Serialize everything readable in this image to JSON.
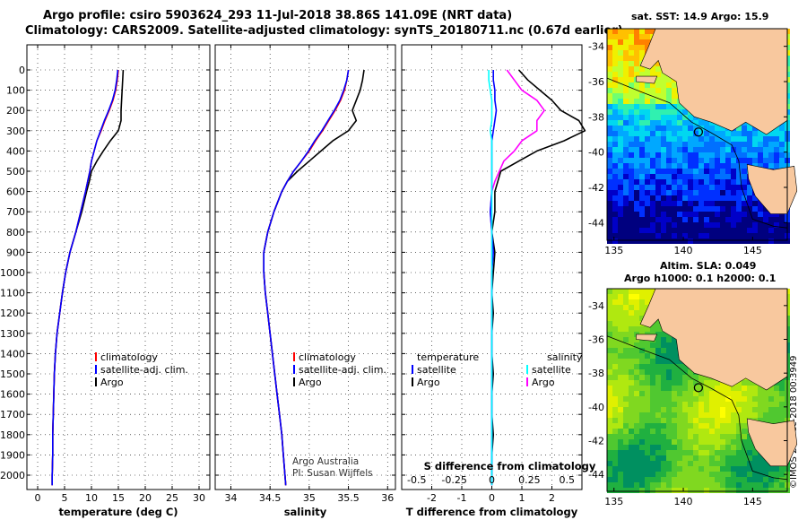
{
  "title_line1": "Argo profile: csiro 5903624_293 11-Jul-2018 38.86S 141.09E (NRT data)",
  "title_line2": "Climatology: CARS2009. Satellite-adjusted climatology: synTS_20180711.nc (0.67d earlier)",
  "map1": {
    "title": "sat. SST: 14.9 Argo: 15.9"
  },
  "map2": {
    "title1": "Altim. SLA: 0.049",
    "title2": "Argo h1000: 0.1 h2000: 0.1"
  },
  "stamp": "©IMOS 20-Dec-2018 00:3949",
  "colors": {
    "climatology": "#ff0000",
    "satellite": "#0000ff",
    "argo": "#000000",
    "t_diff": "#0000ff",
    "s_diff": "#00ffff",
    "s_argo": "#ff00ff",
    "land": "#f8c89e"
  },
  "chart_data": [
    {
      "type": "line",
      "xlabel": "temperature (deg C)",
      "ylabel": "",
      "xlim": [
        -2,
        32
      ],
      "ylim": [
        2050,
        0
      ],
      "xticks": [
        "0",
        "5",
        "10",
        "15",
        "20",
        "25",
        "30"
      ],
      "yticks": [
        "0",
        "100",
        "200",
        "300",
        "400",
        "500",
        "600",
        "700",
        "800",
        "900",
        "1000",
        "1100",
        "1200",
        "1300",
        "1400",
        "1500",
        "1600",
        "1700",
        "1800",
        "1900",
        "2000"
      ],
      "legend": [
        "climatology",
        "satellite-adj. clim.",
        "Argo"
      ],
      "depth": [
        0,
        50,
        100,
        150,
        200,
        250,
        300,
        350,
        400,
        450,
        500,
        550,
        600,
        700,
        800,
        900,
        1000,
        1100,
        1200,
        1300,
        1400,
        1500,
        1600,
        1700,
        1800,
        1900,
        2000,
        2050
      ],
      "series": [
        {
          "name": "climatology",
          "values": [
            15.0,
            14.8,
            14.5,
            14.0,
            13.3,
            12.5,
            11.8,
            11.0,
            10.5,
            10.0,
            9.7,
            9.3,
            8.9,
            8.0,
            7.1,
            6.0,
            5.2,
            4.6,
            4.1,
            3.6,
            3.3,
            3.1,
            3.0,
            2.9,
            2.8,
            2.8,
            2.7,
            2.7
          ]
        },
        {
          "name": "satellite-adj. clim.",
          "values": [
            14.9,
            14.7,
            14.4,
            13.9,
            13.2,
            12.4,
            11.7,
            11.0,
            10.5,
            10.0,
            9.7,
            9.3,
            8.9,
            8.0,
            7.1,
            6.0,
            5.2,
            4.6,
            4.1,
            3.6,
            3.3,
            3.1,
            3.0,
            2.9,
            2.8,
            2.8,
            2.7,
            2.7
          ]
        },
        {
          "name": "Argo",
          "values": [
            15.9,
            15.8,
            15.7,
            15.6,
            15.5,
            15.5,
            15.0,
            13.5,
            12.2,
            11.0,
            10.0,
            9.6,
            9.1,
            8.2,
            7.1,
            6.0,
            5.2,
            4.6,
            4.1,
            3.6,
            3.3,
            3.1,
            3.0,
            2.9,
            2.8,
            2.8,
            2.7,
            2.7
          ]
        }
      ]
    },
    {
      "type": "line",
      "xlabel": "salinity",
      "ylabel": "",
      "xlim": [
        33.8,
        36.1
      ],
      "ylim": [
        2050,
        0
      ],
      "xticks": [
        "34",
        "34.5",
        "35",
        "35.5",
        "36"
      ],
      "legend": [
        "climatology",
        "satellite-adj. clim.",
        "Argo"
      ],
      "annotation": [
        "Argo Australia",
        "PI: Susan Wijffels"
      ],
      "depth": [
        0,
        50,
        100,
        150,
        200,
        250,
        300,
        350,
        400,
        450,
        500,
        550,
        600,
        700,
        800,
        900,
        1000,
        1100,
        1200,
        1300,
        1400,
        1500,
        1600,
        1700,
        1800,
        1900,
        2000,
        2050
      ],
      "series": [
        {
          "name": "climatology",
          "values": [
            35.5,
            35.48,
            35.45,
            35.4,
            35.33,
            35.25,
            35.17,
            35.08,
            35.0,
            34.9,
            34.8,
            34.72,
            34.65,
            34.55,
            34.47,
            34.42,
            34.42,
            34.44,
            34.47,
            34.5,
            34.53,
            34.56,
            34.59,
            34.62,
            34.65,
            34.67,
            34.69,
            34.7
          ]
        },
        {
          "name": "satellite-adj. clim.",
          "values": [
            35.5,
            35.48,
            35.44,
            35.39,
            35.32,
            35.24,
            35.16,
            35.07,
            34.99,
            34.9,
            34.8,
            34.72,
            34.65,
            34.55,
            34.47,
            34.42,
            34.42,
            34.44,
            34.47,
            34.5,
            34.53,
            34.56,
            34.59,
            34.62,
            34.65,
            34.67,
            34.69,
            34.7
          ]
        },
        {
          "name": "Argo",
          "values": [
            35.7,
            35.68,
            35.65,
            35.6,
            35.55,
            35.6,
            35.5,
            35.3,
            35.15,
            35.0,
            34.85,
            34.72,
            34.65,
            34.55,
            34.47,
            34.42,
            34.42,
            34.44,
            34.47,
            34.5,
            34.53,
            34.56,
            34.59,
            34.62,
            34.65,
            34.67,
            34.69,
            34.7
          ]
        }
      ]
    },
    {
      "type": "line",
      "xlabel": "T difference from climatology",
      "xlabel_top": "S difference from climatology",
      "ylabel": "",
      "xlim": [
        -3,
        3
      ],
      "ylim": [
        2050,
        0
      ],
      "xticks": [
        "-2",
        "-1",
        "0",
        "1",
        "2"
      ],
      "xticks_top": [
        "-0.5",
        "-0.25",
        "0",
        "0.25",
        "0.5"
      ],
      "legend_headers": [
        "temperature",
        "salinity"
      ],
      "legend": [
        "satellite",
        "Argo",
        "satellite",
        "Argo"
      ],
      "depth": [
        0,
        50,
        100,
        150,
        200,
        250,
        300,
        350,
        400,
        450,
        500,
        550,
        600,
        700,
        800,
        900,
        1000,
        1100,
        1200,
        1300,
        1400,
        1500,
        1600,
        1700,
        1800,
        1900,
        2000,
        2050
      ],
      "series": [
        {
          "name": "satellite",
          "values": [
            0.05,
            0.05,
            0.1,
            0.1,
            0.15,
            0.1,
            0.05,
            0.0,
            0.0,
            0.0,
            0.0,
            0.0,
            0.0,
            -0.05,
            0.0,
            0.05,
            0.0,
            0.0,
            0.0,
            0.0,
            0.0,
            0.0,
            0.0,
            0.0,
            0.0,
            0.0,
            0.0,
            0.0
          ]
        },
        {
          "name": "Argo",
          "values": [
            0.9,
            1.2,
            1.6,
            2.0,
            2.3,
            2.9,
            3.1,
            2.4,
            1.5,
            0.9,
            0.3,
            0.2,
            0.1,
            0.1,
            0.0,
            0.1,
            0.05,
            0.0,
            0.05,
            0.0,
            0.0,
            0.05,
            0.0,
            0.0,
            0.05,
            0.0,
            0.0,
            0.0
          ]
        },
        {
          "name": "satellite",
          "values": [
            -0.02,
            -0.02,
            -0.01,
            0.0,
            0.0,
            0.0,
            -0.01,
            0.0,
            0.0,
            0.0,
            0.0,
            0.0,
            0.0,
            0.0,
            0.0,
            0.0,
            0.0,
            0.0,
            0.0,
            0.0,
            0.0,
            0.0,
            0.0,
            0.0,
            0.0,
            0.0,
            0.0,
            0.0
          ]
        },
        {
          "name": "Argo",
          "values": [
            0.1,
            0.15,
            0.2,
            0.3,
            0.35,
            0.3,
            0.3,
            0.2,
            0.15,
            0.08,
            0.05,
            0.02,
            0.0,
            -0.01,
            0.0,
            0.0,
            0.0,
            0.0,
            0.0,
            0.0,
            0.0,
            0.0,
            0.0,
            0.0,
            0.0,
            0.0,
            0.0,
            0.0
          ]
        }
      ]
    },
    {
      "type": "heatmap",
      "title": "sat. SST: 14.9 Argo: 15.9",
      "xlim": [
        134.5,
        147.5
      ],
      "ylim": [
        -45,
        -33
      ],
      "xticks": [
        "135",
        "140",
        "145"
      ],
      "yticks": [
        "-34",
        "-36",
        "-38",
        "-40",
        "-42",
        "-44"
      ],
      "argo_position": [
        141.09,
        -38.86
      ]
    },
    {
      "type": "heatmap",
      "title": "Altim. SLA: 0.049",
      "subtitle": "Argo h1000: 0.1 h2000: 0.1",
      "xlim": [
        134.5,
        147.5
      ],
      "ylim": [
        -45,
        -33
      ],
      "xticks": [
        "135",
        "140",
        "145"
      ],
      "yticks": [
        "-34",
        "-36",
        "-38",
        "-40",
        "-42",
        "-44"
      ],
      "argo_position": [
        141.09,
        -38.86
      ]
    }
  ]
}
